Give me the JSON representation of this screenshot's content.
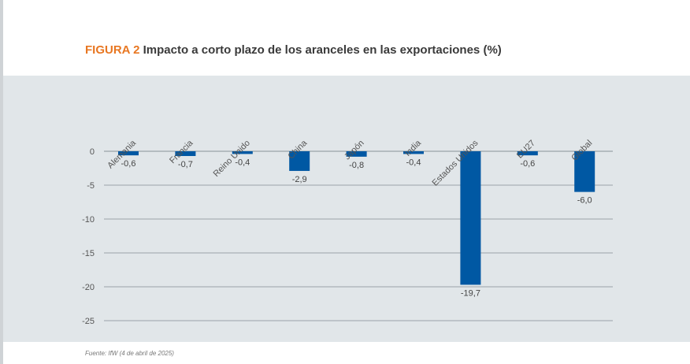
{
  "figure": {
    "label": "FIGURA 2",
    "title": "Impacto a corto plazo de los aranceles en las exportaciones (%)"
  },
  "source": "Fuente: IfW (4 de abril de 2025)",
  "colors": {
    "bar": "#0058a3",
    "figure_label": "#e87722",
    "panel_bg": "#e1e6e9",
    "grid": "#9aa3a9"
  },
  "chart_data": {
    "type": "bar",
    "categories": [
      "Alemania",
      "Francia",
      "Reino Unido",
      "China",
      "Japón",
      "India",
      "Estados Unidos",
      "EU27",
      "Global"
    ],
    "values": [
      -0.6,
      -0.7,
      -0.4,
      -2.9,
      -0.8,
      -0.4,
      -19.7,
      -0.6,
      -6.0
    ],
    "value_labels": [
      "-0,6",
      "-0,7",
      "-0,4",
      "-2,9",
      "-0,8",
      "-0,4",
      "-19,7",
      "-0,6",
      "-6,0"
    ],
    "yticks": [
      0,
      -5,
      -10,
      -15,
      -20,
      -25
    ],
    "ytick_labels": [
      "0",
      "-5",
      "-10",
      "-15",
      "-20",
      "-25"
    ],
    "ylim": [
      -25,
      0
    ],
    "grid": true
  }
}
